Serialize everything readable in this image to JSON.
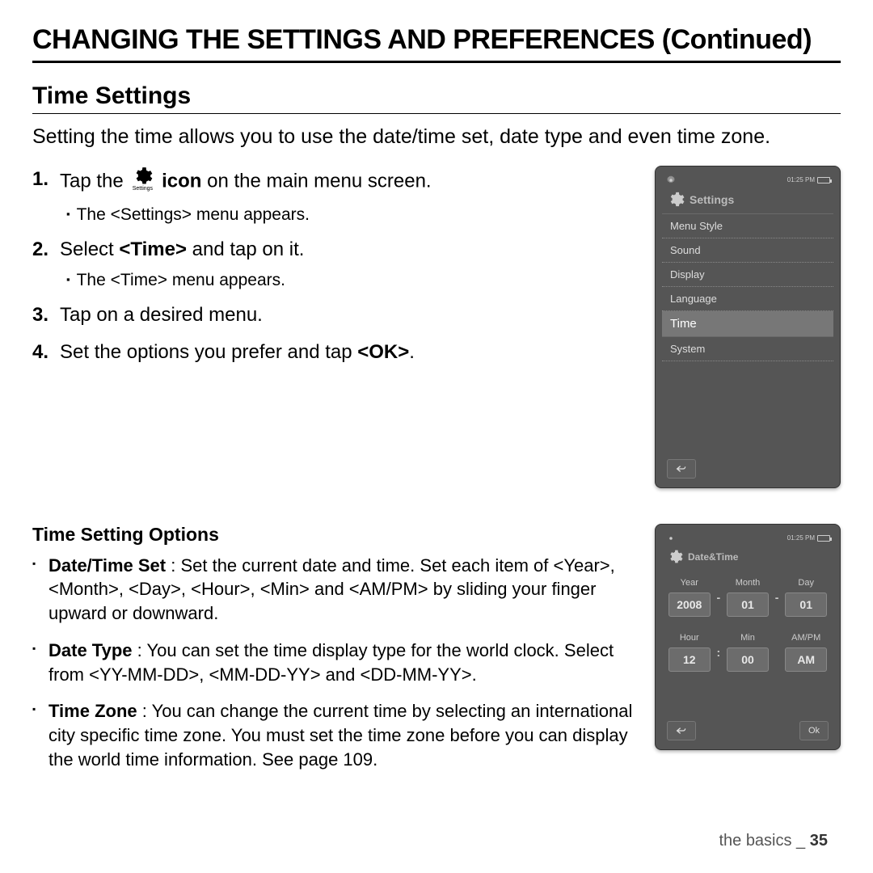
{
  "page_title": "CHANGING THE SETTINGS AND PREFERENCES (Continued)",
  "section_title": "Time Settings",
  "intro": "Setting the time allows you to use the date/time set, date type and even time zone.",
  "steps": {
    "s1_a": "Tap the",
    "s1_b": "icon",
    "s1_c": " on the main menu screen.",
    "s1_sub": "The <Settings> menu appears.",
    "s2_a": "Select ",
    "s2_b": "<Time>",
    "s2_c": " and tap on it.",
    "s2_sub": "The <Time> menu appears.",
    "s3": "Tap on a desired menu.",
    "s4_a": "Set the options you prefer and tap ",
    "s4_b": "<OK>",
    "s4_c": "."
  },
  "inline_icon_label": "Settings",
  "options_title": "Time Setting Options",
  "options": {
    "o1_t": "Date/Time Set",
    "o1_d": " : Set the current date and time. Set each item of <Year>, <Month>, <Day>, <Hour>, <Min> and <AM/PM> by sliding your finger upward or downward.",
    "o2_t": "Date Type",
    "o2_d": " : You can set the time display type for the world clock. Select from <YY-MM-DD>, <MM-DD-YY> and <DD-MM-YY>.",
    "o3_t": "Time Zone",
    "o3_d": " : You can change the current time by selecting an international city specific time zone. You must set the time zone before you can display the world time information. See page 109."
  },
  "device1": {
    "time": "01:25 PM",
    "title": "Settings",
    "items": [
      "Menu Style",
      "Sound",
      "Display",
      "Language",
      "Time",
      "System"
    ],
    "highlight_index": 4
  },
  "device2": {
    "time": "01:25 PM",
    "title": "Date&Time",
    "cols1": [
      "Year",
      "Month",
      "Day"
    ],
    "vals1": [
      "2008",
      "01",
      "01"
    ],
    "cols2": [
      "Hour",
      "Min",
      "AM/PM"
    ],
    "vals2": [
      "12",
      "00",
      "AM"
    ],
    "ok": "Ok"
  },
  "footer": {
    "text": "the basics _",
    "page": " 35"
  }
}
